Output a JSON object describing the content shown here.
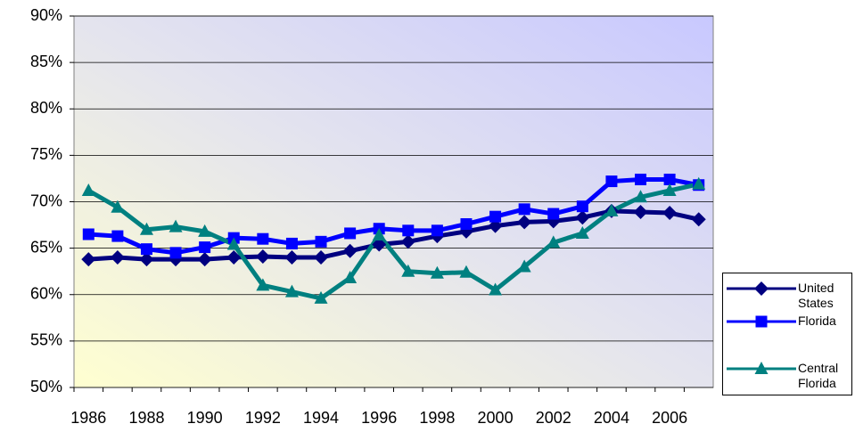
{
  "chart_data": {
    "type": "line",
    "categories": [
      "1986",
      null,
      "1988",
      null,
      "1990",
      null,
      "1992",
      null,
      "1994",
      null,
      "1996",
      null,
      "1998",
      null,
      "2000",
      null,
      "2002",
      null,
      "2004",
      null,
      "2006",
      null
    ],
    "ylim": [
      50,
      90
    ],
    "yticks": [
      {
        "value": 50,
        "label": "50%"
      },
      {
        "value": 55,
        "label": "55%"
      },
      {
        "value": 60,
        "label": "60%"
      },
      {
        "value": 65,
        "label": "65%"
      },
      {
        "value": 70,
        "label": "70%"
      },
      {
        "value": 75,
        "label": "75%"
      },
      {
        "value": 80,
        "label": "80%"
      },
      {
        "value": 85,
        "label": "85%"
      },
      {
        "value": 90,
        "label": "90%"
      }
    ],
    "grid": true,
    "series": [
      {
        "name": "United States",
        "color": "#000080",
        "marker": "diamond",
        "values": [
          63.8,
          64.0,
          63.8,
          63.8,
          63.8,
          64.0,
          64.1,
          64.0,
          64.0,
          64.7,
          65.4,
          65.7,
          66.3,
          66.8,
          67.4,
          67.8,
          67.9,
          68.3,
          69.0,
          68.9,
          68.8,
          68.1
        ]
      },
      {
        "name": "Florida",
        "color": "#0000ff",
        "marker": "square",
        "values": [
          66.5,
          66.3,
          64.9,
          64.5,
          65.1,
          66.1,
          66.0,
          65.5,
          65.7,
          66.6,
          67.1,
          66.9,
          66.9,
          67.6,
          68.4,
          69.2,
          68.7,
          69.5,
          72.2,
          72.4,
          72.4,
          71.8
        ]
      },
      {
        "name": "Central Florida",
        "color": "#008080",
        "marker": "triangle",
        "values": [
          71.2,
          69.4,
          67.0,
          67.3,
          66.8,
          65.4,
          61.0,
          60.3,
          59.6,
          61.8,
          66.4,
          62.5,
          62.3,
          62.4,
          60.5,
          63.0,
          65.6,
          66.6,
          69.0,
          70.5,
          71.2,
          71.9
        ]
      }
    ]
  }
}
